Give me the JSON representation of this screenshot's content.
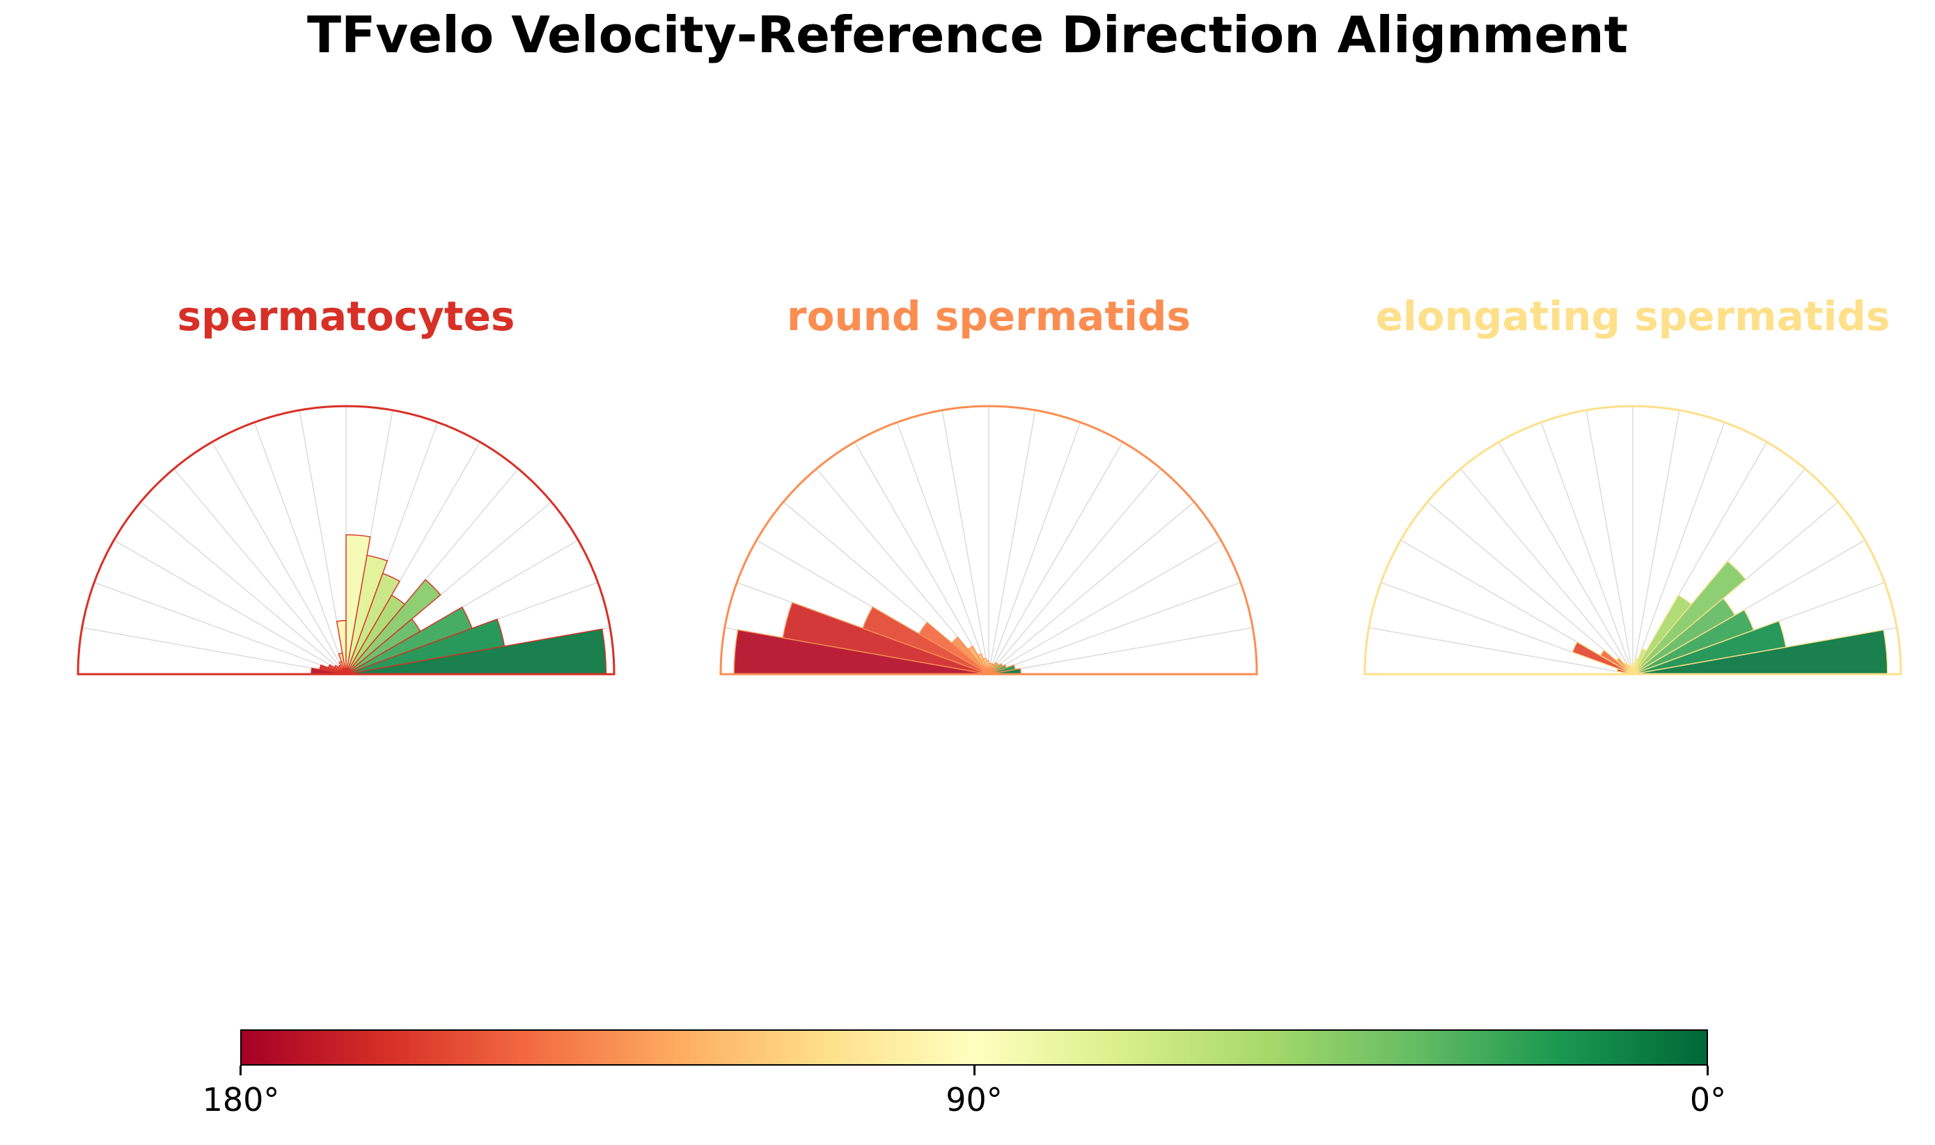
{
  "title": "TFvelo Velocity-Reference Direction Alignment",
  "chart_data": [
    {
      "type": "polar_histogram",
      "title": "spermatocytes",
      "accent_color": "#d73027",
      "theta_range_deg": [
        0,
        180
      ],
      "bin_width_deg": 10,
      "bin_edges_deg": [
        180,
        170,
        160,
        150,
        140,
        130,
        120,
        110,
        100,
        90,
        80,
        70,
        60,
        50,
        40,
        30,
        20,
        10,
        0
      ],
      "values_unit": "fraction_of_max_radius",
      "values": [
        0.13,
        0.1,
        0.07,
        0.05,
        0.04,
        0.04,
        0.05,
        0.08,
        0.2,
        0.52,
        0.45,
        0.4,
        0.34,
        0.46,
        0.32,
        0.5,
        0.6,
        0.97
      ],
      "grid": "radial_spokes_every_10_deg"
    },
    {
      "type": "polar_histogram",
      "title": "round spermatids",
      "accent_color": "#fb8d51",
      "theta_range_deg": [
        0,
        180
      ],
      "bin_width_deg": 10,
      "bin_edges_deg": [
        180,
        170,
        160,
        150,
        140,
        130,
        120,
        110,
        100,
        90,
        80,
        70,
        60,
        50,
        40,
        30,
        20,
        10,
        0
      ],
      "values_unit": "fraction_of_max_radius",
      "values": [
        0.95,
        0.78,
        0.5,
        0.3,
        0.18,
        0.12,
        0.08,
        0.06,
        0.05,
        0.04,
        0.04,
        0.04,
        0.05,
        0.05,
        0.06,
        0.07,
        0.1,
        0.12
      ],
      "grid": "radial_spokes_every_10_deg"
    },
    {
      "type": "polar_histogram",
      "title": "elongating spermatids",
      "accent_color": "#fee08b",
      "theta_range_deg": [
        0,
        180
      ],
      "bin_width_deg": 10,
      "bin_edges_deg": [
        180,
        170,
        160,
        150,
        140,
        130,
        120,
        110,
        100,
        90,
        80,
        70,
        60,
        50,
        40,
        30,
        20,
        10,
        0
      ],
      "values_unit": "fraction_of_max_radius",
      "values": [
        0.04,
        0.06,
        0.24,
        0.14,
        0.08,
        0.05,
        0.04,
        0.03,
        0.03,
        0.04,
        0.06,
        0.1,
        0.34,
        0.55,
        0.44,
        0.48,
        0.58,
        0.95
      ],
      "grid": "radial_spokes_every_10_deg"
    }
  ],
  "colorbar": {
    "gradient_colors": [
      "#a50026",
      "#d73027",
      "#f46d43",
      "#fdae61",
      "#fee08b",
      "#ffffbf",
      "#d9ef8b",
      "#a6d96a",
      "#66bd63",
      "#1a9850",
      "#006837"
    ],
    "orientation": "horizontal",
    "ticks": [
      {
        "label": "180°",
        "position": 0
      },
      {
        "label": "90°",
        "position": 0.5
      },
      {
        "label": "0°",
        "position": 1
      }
    ]
  },
  "colors": {
    "background": "#ffffff",
    "gridline": "#d9d9d9",
    "text": "#000000"
  }
}
